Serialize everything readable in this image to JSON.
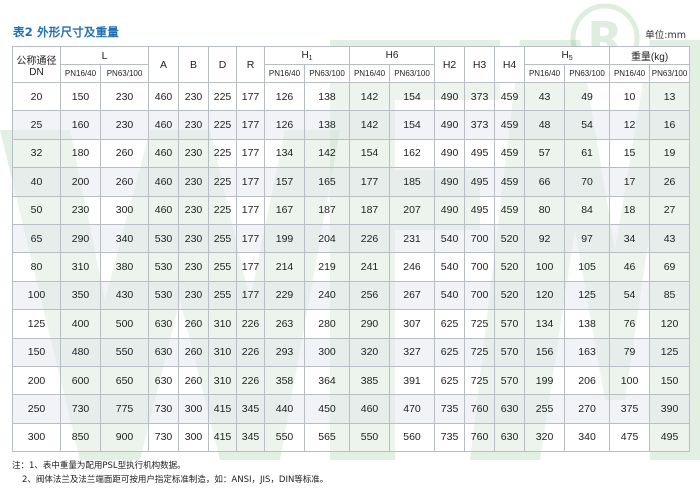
{
  "title": "表2 外形尺寸及重量",
  "unit_label": "单位:mm",
  "header": {
    "dn_line1": "公称通径",
    "dn_line2": "DN",
    "L": "L",
    "A": "A",
    "B": "B",
    "D": "D",
    "R": "R",
    "H1_main": "H",
    "H1_sub": "1",
    "H6": "H6",
    "H2": "H2",
    "H3": "H3",
    "H4": "H4",
    "H5_main": "H",
    "H5_sub": "5",
    "weight": "重量(kg)",
    "pn1": "PN16/40",
    "pn2": "PN63/100"
  },
  "rows": [
    [
      "20",
      "150",
      "230",
      "460",
      "230",
      "225",
      "177",
      "126",
      "138",
      "142",
      "154",
      "490",
      "373",
      "459",
      "43",
      "49",
      "10",
      "13"
    ],
    [
      "25",
      "160",
      "230",
      "460",
      "230",
      "225",
      "177",
      "126",
      "138",
      "142",
      "154",
      "490",
      "373",
      "459",
      "48",
      "54",
      "12",
      "16"
    ],
    [
      "32",
      "180",
      "260",
      "460",
      "230",
      "225",
      "177",
      "134",
      "142",
      "154",
      "162",
      "490",
      "495",
      "459",
      "57",
      "61",
      "15",
      "19"
    ],
    [
      "40",
      "200",
      "260",
      "460",
      "230",
      "225",
      "177",
      "157",
      "165",
      "177",
      "185",
      "490",
      "495",
      "459",
      "66",
      "70",
      "17",
      "26"
    ],
    [
      "50",
      "230",
      "300",
      "460",
      "230",
      "225",
      "177",
      "167",
      "187",
      "187",
      "207",
      "490",
      "495",
      "459",
      "80",
      "84",
      "18",
      "27"
    ],
    [
      "65",
      "290",
      "340",
      "530",
      "230",
      "255",
      "177",
      "199",
      "204",
      "226",
      "231",
      "540",
      "700",
      "520",
      "92",
      "97",
      "34",
      "43"
    ],
    [
      "80",
      "310",
      "380",
      "530",
      "230",
      "255",
      "177",
      "214",
      "219",
      "241",
      "246",
      "540",
      "700",
      "520",
      "100",
      "105",
      "46",
      "69"
    ],
    [
      "100",
      "350",
      "430",
      "530",
      "230",
      "255",
      "177",
      "229",
      "240",
      "256",
      "267",
      "540",
      "700",
      "520",
      "120",
      "125",
      "54",
      "85"
    ],
    [
      "125",
      "400",
      "500",
      "630",
      "260",
      "310",
      "226",
      "263",
      "280",
      "290",
      "307",
      "625",
      "725",
      "570",
      "134",
      "138",
      "76",
      "120"
    ],
    [
      "150",
      "480",
      "550",
      "630",
      "260",
      "310",
      "226",
      "293",
      "300",
      "320",
      "327",
      "625",
      "725",
      "570",
      "156",
      "163",
      "79",
      "125"
    ],
    [
      "200",
      "600",
      "650",
      "630",
      "260",
      "310",
      "226",
      "358",
      "364",
      "385",
      "391",
      "625",
      "725",
      "570",
      "199",
      "206",
      "100",
      "150"
    ],
    [
      "250",
      "730",
      "775",
      "730",
      "300",
      "415",
      "345",
      "440",
      "450",
      "460",
      "470",
      "735",
      "760",
      "630",
      "255",
      "270",
      "375",
      "390"
    ],
    [
      "300",
      "850",
      "900",
      "730",
      "300",
      "415",
      "345",
      "550",
      "565",
      "550",
      "560",
      "735",
      "760",
      "630",
      "320",
      "340",
      "475",
      "495"
    ]
  ],
  "notes": [
    "注：1、表中重量为配用PSL型执行机构数据。",
    "2、阀体法兰及法兰端面距可按用户指定标准制造，如：ANSI，JIS，DIN等标准。"
  ]
}
